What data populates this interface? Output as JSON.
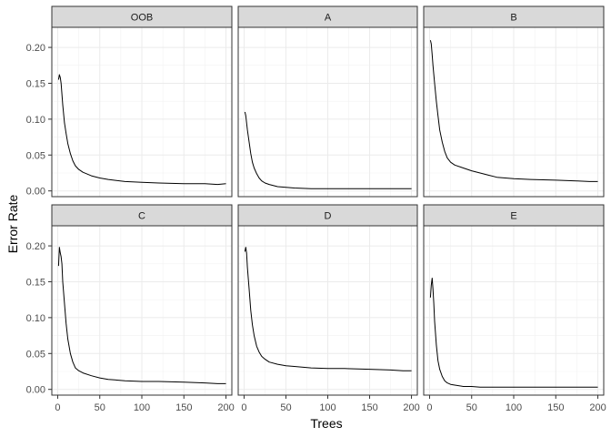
{
  "chart_data": {
    "type": "line",
    "title": "",
    "xlabel": "Trees",
    "ylabel": "Error Rate",
    "xlim": [
      -7,
      207
    ],
    "ylim": [
      -0.008,
      0.228
    ],
    "x_ticks": [
      0,
      50,
      100,
      150,
      200
    ],
    "x_tick_labels": [
      "0",
      "50",
      "100",
      "150",
      "200"
    ],
    "y_ticks": [
      0,
      0.05,
      0.1,
      0.15,
      0.2
    ],
    "y_tick_labels": [
      "0.00",
      "0.05",
      "0.10",
      "0.15",
      "0.20"
    ],
    "grid": true,
    "legend": "none",
    "facet_layout": "2x3",
    "series": [
      {
        "name": "OOB",
        "x": [
          1,
          2,
          3,
          4,
          6,
          8,
          10,
          12,
          15,
          18,
          21,
          25,
          30,
          40,
          50,
          60,
          80,
          100,
          120,
          150,
          175,
          190,
          200
        ],
        "values": [
          0.155,
          0.162,
          0.158,
          0.15,
          0.12,
          0.095,
          0.08,
          0.066,
          0.052,
          0.042,
          0.035,
          0.03,
          0.026,
          0.021,
          0.018,
          0.016,
          0.013,
          0.012,
          0.011,
          0.01,
          0.01,
          0.009,
          0.01
        ]
      },
      {
        "name": "A",
        "x": [
          1,
          2,
          3,
          4,
          6,
          8,
          10,
          12,
          15,
          18,
          21,
          25,
          30,
          40,
          50,
          60,
          80,
          100,
          120,
          150,
          175,
          190,
          200
        ],
        "values": [
          0.11,
          0.105,
          0.095,
          0.085,
          0.068,
          0.052,
          0.04,
          0.032,
          0.024,
          0.018,
          0.014,
          0.011,
          0.009,
          0.006,
          0.005,
          0.004,
          0.003,
          0.003,
          0.003,
          0.003,
          0.003,
          0.003,
          0.003
        ]
      },
      {
        "name": "B",
        "x": [
          1,
          2,
          3,
          4,
          6,
          8,
          10,
          12,
          15,
          18,
          21,
          25,
          30,
          40,
          50,
          60,
          70,
          80,
          90,
          100,
          120,
          150,
          175,
          190,
          200
        ],
        "values": [
          0.21,
          0.205,
          0.19,
          0.175,
          0.15,
          0.125,
          0.105,
          0.085,
          0.068,
          0.055,
          0.046,
          0.04,
          0.036,
          0.032,
          0.028,
          0.025,
          0.022,
          0.019,
          0.018,
          0.017,
          0.016,
          0.015,
          0.014,
          0.013,
          0.013
        ]
      },
      {
        "name": "C",
        "x": [
          1,
          2,
          3,
          4,
          5,
          6,
          8,
          10,
          12,
          15,
          18,
          21,
          25,
          30,
          40,
          50,
          60,
          80,
          100,
          120,
          150,
          175,
          190,
          200
        ],
        "values": [
          0.172,
          0.198,
          0.19,
          0.185,
          0.175,
          0.15,
          0.12,
          0.092,
          0.07,
          0.05,
          0.038,
          0.03,
          0.026,
          0.023,
          0.019,
          0.016,
          0.014,
          0.012,
          0.011,
          0.011,
          0.01,
          0.009,
          0.008,
          0.008
        ]
      },
      {
        "name": "D",
        "x": [
          1,
          2,
          3,
          4,
          6,
          8,
          10,
          12,
          15,
          18,
          21,
          25,
          30,
          40,
          50,
          60,
          80,
          100,
          120,
          150,
          175,
          190,
          200
        ],
        "values": [
          0.192,
          0.198,
          0.19,
          0.17,
          0.14,
          0.11,
          0.09,
          0.075,
          0.06,
          0.052,
          0.046,
          0.042,
          0.038,
          0.035,
          0.033,
          0.032,
          0.03,
          0.029,
          0.029,
          0.028,
          0.027,
          0.026,
          0.026
        ]
      },
      {
        "name": "E",
        "x": [
          1,
          2,
          3,
          4,
          5,
          6,
          8,
          10,
          12,
          15,
          18,
          21,
          25,
          30,
          40,
          50,
          60,
          80,
          100,
          120,
          150,
          175,
          190,
          200
        ],
        "values": [
          0.128,
          0.145,
          0.155,
          0.14,
          0.12,
          0.095,
          0.062,
          0.04,
          0.028,
          0.018,
          0.012,
          0.009,
          0.007,
          0.006,
          0.004,
          0.004,
          0.003,
          0.003,
          0.003,
          0.003,
          0.003,
          0.003,
          0.003,
          0.003
        ]
      }
    ]
  }
}
